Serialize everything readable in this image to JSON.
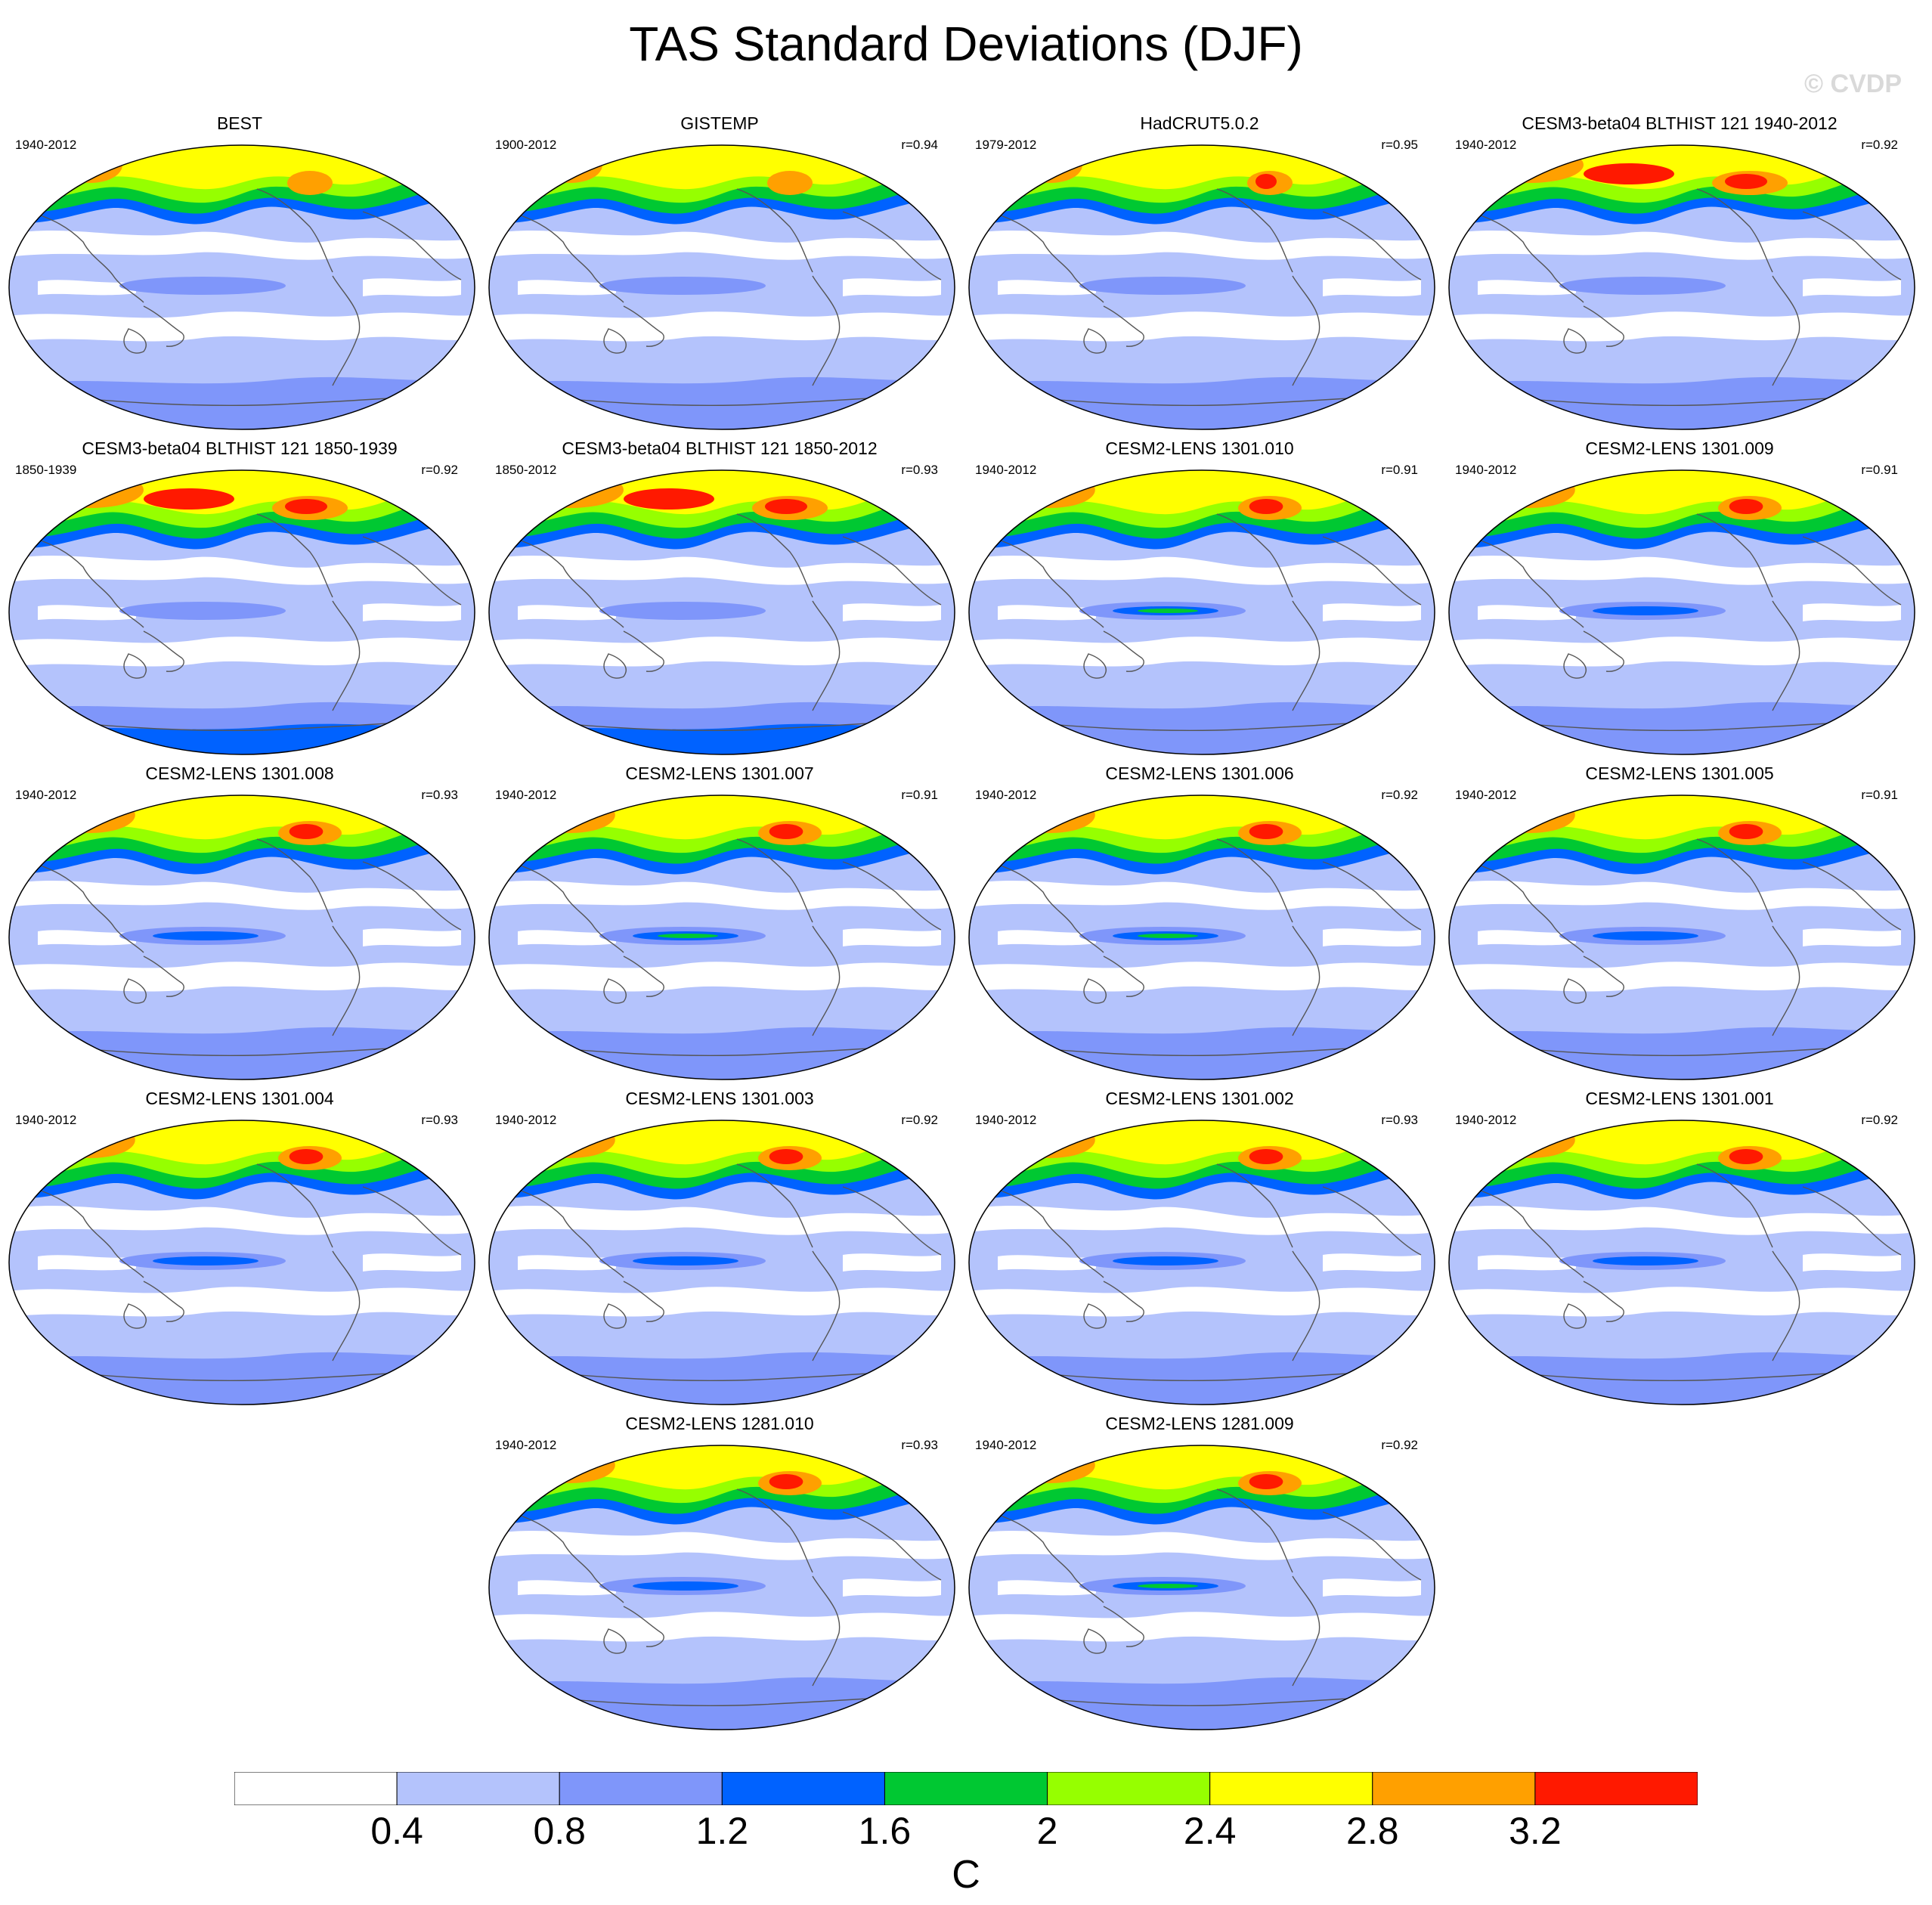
{
  "title": "TAS Standard Deviations (DJF)",
  "watermark": "© CVDP",
  "colors": {
    "levels": [
      "#ffffff",
      "#b4c3fc",
      "#7f96fa",
      "#0062ff",
      "#00c832",
      "#96ff00",
      "#ffff00",
      "#ffa000",
      "#ff1900"
    ],
    "coastline": "#555555",
    "map_border": "#000000"
  },
  "colorbar": {
    "ticks": [
      "0.4",
      "0.8",
      "1.2",
      "1.6",
      "2",
      "2.4",
      "2.8",
      "3.2"
    ],
    "unit": "C"
  },
  "panels": [
    {
      "title": "BEST",
      "period": "1940-2012",
      "corr": ""
    },
    {
      "title": "GISTEMP",
      "period": "1900-2012",
      "corr": "r=0.94"
    },
    {
      "title": "HadCRUT5.0.2",
      "period": "1979-2012",
      "corr": "r=0.95"
    },
    {
      "title": "CESM3-beta04 BLTHIST 121 1940-2012",
      "period": "1940-2012",
      "corr": "r=0.92"
    },
    {
      "title": "CESM3-beta04 BLTHIST 121 1850-1939",
      "period": "1850-1939",
      "corr": "r=0.92"
    },
    {
      "title": "CESM3-beta04 BLTHIST 121 1850-2012",
      "period": "1850-2012",
      "corr": "r=0.93"
    },
    {
      "title": "CESM2-LENS 1301.010",
      "period": "1940-2012",
      "corr": "r=0.91"
    },
    {
      "title": "CESM2-LENS 1301.009",
      "period": "1940-2012",
      "corr": "r=0.91"
    },
    {
      "title": "CESM2-LENS 1301.008",
      "period": "1940-2012",
      "corr": "r=0.93"
    },
    {
      "title": "CESM2-LENS 1301.007",
      "period": "1940-2012",
      "corr": "r=0.91"
    },
    {
      "title": "CESM2-LENS 1301.006",
      "period": "1940-2012",
      "corr": "r=0.92"
    },
    {
      "title": "CESM2-LENS 1301.005",
      "period": "1940-2012",
      "corr": "r=0.91"
    },
    {
      "title": "CESM2-LENS 1301.004",
      "period": "1940-2012",
      "corr": "r=0.93"
    },
    {
      "title": "CESM2-LENS 1301.003",
      "period": "1940-2012",
      "corr": "r=0.92"
    },
    {
      "title": "CESM2-LENS 1301.002",
      "period": "1940-2012",
      "corr": "r=0.93"
    },
    {
      "title": "CESM2-LENS 1301.001",
      "period": "1940-2012",
      "corr": "r=0.92"
    },
    {
      "title": "CESM2-LENS 1281.010",
      "period": "1940-2012",
      "corr": "r=0.93"
    },
    {
      "title": "CESM2-LENS 1281.009",
      "period": "1940-2012",
      "corr": "r=0.92"
    }
  ]
}
